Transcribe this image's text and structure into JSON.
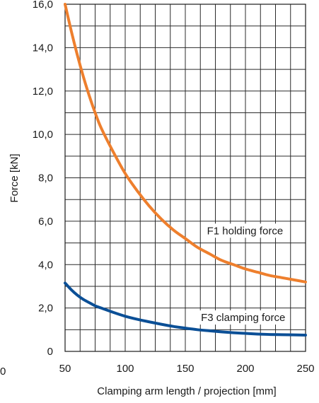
{
  "chart_data": {
    "type": "line",
    "title": "",
    "xlabel": "Clamping arm length / projection [mm]",
    "ylabel": "Force [kN]",
    "xlim": [
      50,
      250
    ],
    "ylim": [
      0,
      16
    ],
    "grid": true,
    "x_ticks": [
      50,
      100,
      150,
      200,
      250
    ],
    "x_tick_labels": [
      "50",
      "100",
      "150",
      "200",
      "250"
    ],
    "y_ticks": [
      0,
      2,
      4,
      6,
      8,
      10,
      12,
      14,
      16
    ],
    "y_tick_labels": [
      "0",
      "2,0",
      "4,0",
      "6,0",
      "8,0",
      "10,0",
      "12,0",
      "14,0",
      "16,0"
    ],
    "stray_label": "0",
    "series": [
      {
        "name": "F1 holding force",
        "color": "#ee7f2d",
        "x": [
          50,
          55,
          60,
          65,
          70,
          75,
          80,
          90,
          100,
          110,
          120,
          130,
          140,
          150,
          160,
          170,
          180,
          190,
          200,
          210,
          220,
          230,
          240,
          250
        ],
        "y": [
          16.0,
          14.8,
          13.7,
          12.7,
          11.8,
          11.0,
          10.3,
          9.2,
          8.2,
          7.4,
          6.7,
          6.1,
          5.6,
          5.2,
          4.8,
          4.5,
          4.2,
          4.0,
          3.8,
          3.65,
          3.5,
          3.4,
          3.3,
          3.2
        ]
      },
      {
        "name": "F3 clamping force",
        "color": "#0b4f96",
        "x": [
          50,
          55,
          60,
          65,
          70,
          75,
          80,
          90,
          100,
          110,
          120,
          130,
          140,
          150,
          160,
          170,
          180,
          190,
          200,
          210,
          220,
          230,
          240,
          250
        ],
        "y": [
          3.15,
          2.85,
          2.6,
          2.4,
          2.25,
          2.1,
          2.0,
          1.8,
          1.62,
          1.48,
          1.36,
          1.25,
          1.15,
          1.07,
          1.0,
          0.95,
          0.9,
          0.86,
          0.83,
          0.8,
          0.78,
          0.77,
          0.76,
          0.75
        ]
      }
    ],
    "annotations": [
      {
        "text": "F1 holding force",
        "x": 168,
        "y": 5.4
      },
      {
        "text": "F3 clamping force",
        "x": 163,
        "y": 1.4
      }
    ]
  }
}
